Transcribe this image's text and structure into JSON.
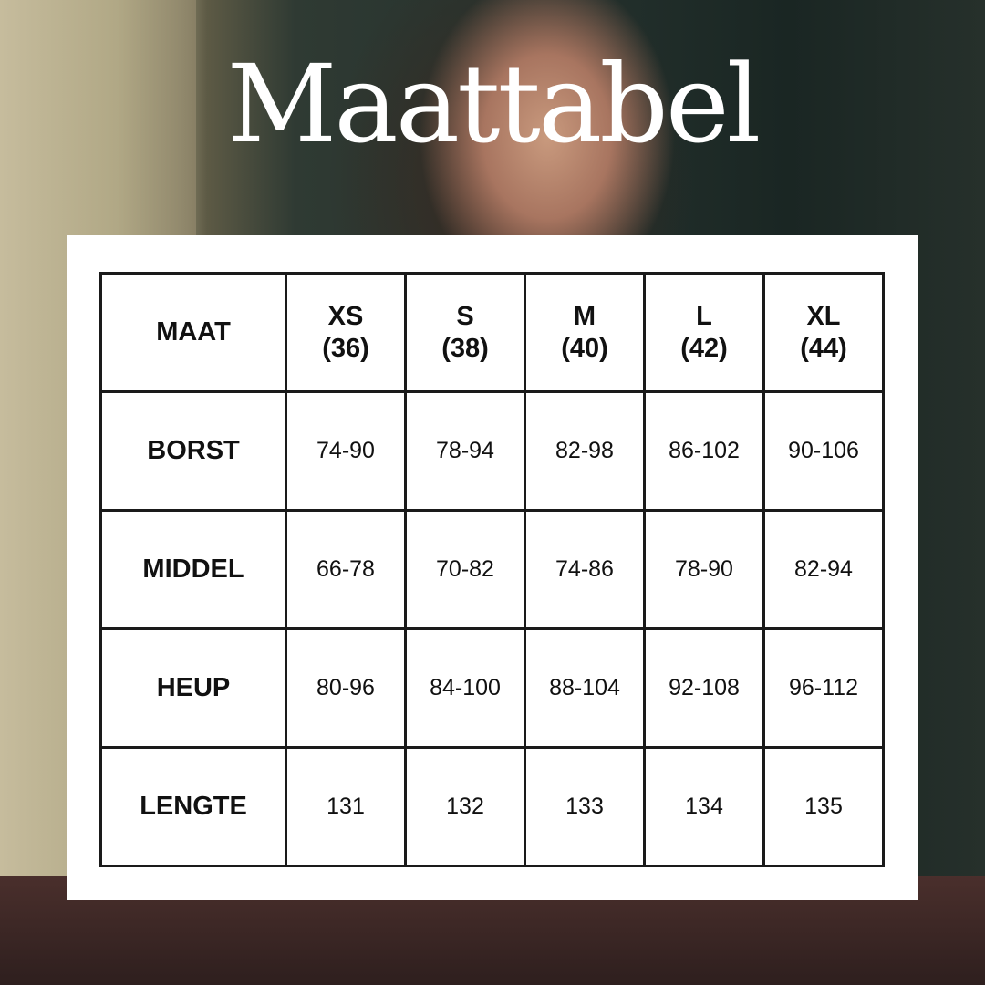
{
  "title": "Maattabel",
  "table": {
    "corner": "MAAT",
    "sizes": [
      {
        "label": "XS",
        "eu": "(36)"
      },
      {
        "label": "S",
        "eu": "(38)"
      },
      {
        "label": "M",
        "eu": "(40)"
      },
      {
        "label": "L",
        "eu": "(42)"
      },
      {
        "label": "XL",
        "eu": "(44)"
      }
    ],
    "rows": [
      {
        "label": "BORST",
        "values": [
          "74-90",
          "78-94",
          "82-98",
          "86-102",
          "90-106"
        ]
      },
      {
        "label": "MIDDEL",
        "values": [
          "66-78",
          "70-82",
          "74-86",
          "78-90",
          "82-94"
        ]
      },
      {
        "label": "HEUP",
        "values": [
          "80-96",
          "84-100",
          "88-104",
          "92-108",
          "96-112"
        ]
      },
      {
        "label": "LENGTE",
        "values": [
          "131",
          "132",
          "133",
          "134",
          "135"
        ]
      }
    ]
  }
}
